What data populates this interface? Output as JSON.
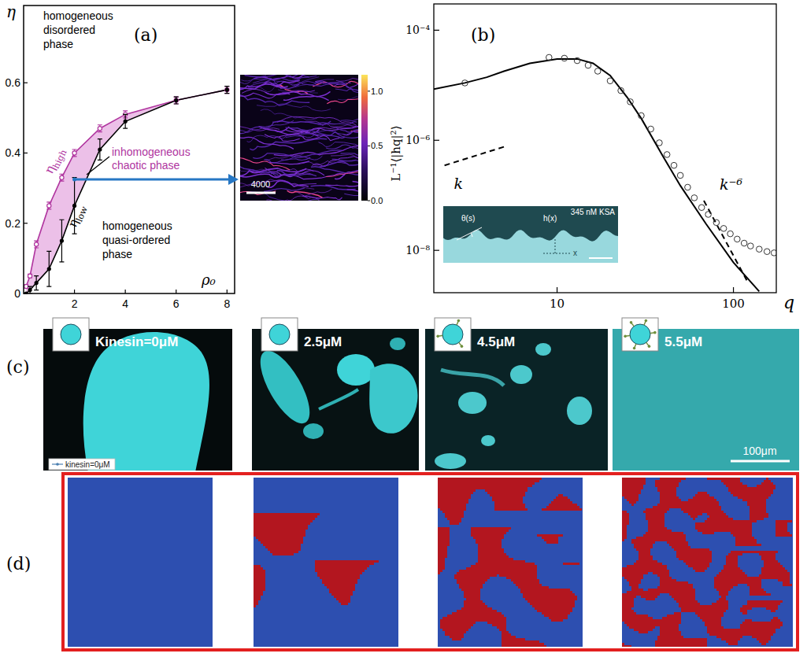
{
  "chart_data": [
    {
      "type": "line",
      "x_label": "ρ₀",
      "y_label": "η",
      "annotations": [
        "homogeneous disordered phase",
        "inhomogeneous chaotic phase",
        "homogeneous quasi-ordered phase"
      ],
      "xlim": [
        0,
        8.3
      ],
      "ylim": [
        0,
        0.82
      ],
      "xticks": [
        2,
        4,
        6,
        8
      ],
      "yticks": [
        0,
        0.2,
        0.4,
        0.6
      ],
      "x": [
        0.1,
        0.25,
        0.5,
        1,
        1.5,
        2,
        3,
        4,
        6,
        8
      ],
      "series": [
        {
          "name": "ηhigh",
          "color": "#b0359f",
          "marker": "circle",
          "values": [
            0.02,
            0.05,
            0.14,
            0.25,
            0.33,
            0.4,
            0.47,
            0.51,
            0.55,
            0.58
          ],
          "errors": [
            0.005,
            0.005,
            0.01,
            0.01,
            0.01,
            0.01,
            0.01,
            0.01,
            0.01,
            0.01
          ]
        },
        {
          "name": "ηlow",
          "color": "#000000",
          "marker": "dot",
          "values": [
            0,
            0.01,
            0.03,
            0.07,
            0.15,
            0.25,
            0.41,
            0.49,
            0.55,
            0.58
          ],
          "errors": [
            0,
            0.01,
            0.02,
            0.05,
            0.06,
            0.08,
            0.03,
            0.02,
            0.01,
            0.01
          ]
        }
      ]
    },
    {
      "type": "line",
      "log": true,
      "x_label": "q",
      "y_label": "L⁻¹⟨|hq|²⟩",
      "xlim": [
        2,
        175
      ],
      "ylim": [
        1.7e-09,
        0.0003
      ],
      "xticks": [
        10,
        100
      ],
      "yticks": [
        {
          "value": 0.0001,
          "label": "10⁻⁴"
        },
        {
          "value": 1e-06,
          "label": "10⁻⁶"
        },
        {
          "value": 1e-08,
          "label": "10⁻⁸"
        }
      ],
      "series": [
        {
          "name": "k",
          "type": "line",
          "line_style": "dashed",
          "color": "#000000",
          "x": [
            2.3,
            5
          ],
          "values": [
            3.5e-07,
            7.6e-07
          ]
        },
        {
          "name": "k⁻⁶",
          "type": "line",
          "line_style": "dashed",
          "color": "#000000",
          "x": [
            68,
            120
          ],
          "values": [
            8e-08,
            2.7e-09
          ]
        },
        {
          "type": "line",
          "line_style": "solid",
          "color": "#000000",
          "x": [
            2,
            3,
            4,
            5,
            7,
            10,
            13,
            16,
            20,
            25,
            30,
            40,
            50,
            70,
            100,
            140
          ],
          "values": [
            8.5e-06,
            1.1e-05,
            1.4e-05,
            1.8e-05,
            2.5e-05,
            3e-05,
            3e-05,
            2.5e-05,
            1.5e-05,
            6e-06,
            2.5e-06,
            5e-07,
            1.5e-07,
            3e-08,
            6e-09,
            1.8e-09
          ]
        },
        {
          "type": "scatter",
          "marker": "open-circle",
          "color": "#333333",
          "x": [
            3,
            9,
            11,
            13,
            15,
            17,
            20,
            23,
            26,
            30,
            34,
            38,
            42,
            46,
            50,
            55,
            60,
            66,
            72,
            80,
            88,
            96,
            105,
            115,
            125,
            140,
            155,
            170
          ],
          "values": [
            1.1e-05,
            3.2e-05,
            3.1e-05,
            2.8e-05,
            2.3e-05,
            1.8e-05,
            1.2e-05,
            8e-06,
            5e-06,
            2.8e-06,
            1.6e-06,
            9e-07,
            5.5e-07,
            3.5e-07,
            2.3e-07,
            1.4e-07,
            9e-08,
            6e-08,
            4.5e-08,
            3.2e-08,
            2.5e-08,
            2e-08,
            1.6e-08,
            1.35e-08,
            1.2e-08,
            1.05e-08,
            9.5e-09,
            9e-09
          ]
        }
      ]
    }
  ],
  "figure": {
    "panel_labels": [
      "(a)",
      "(b)",
      "(c)",
      "(d)"
    ],
    "snapshot_a": {
      "scale_bar": "4000",
      "colorbar": {
        "range": [
          0,
          1.15
        ],
        "ticks": [
          {
            "value": 0,
            "label": "0.0"
          },
          {
            "value": 0.5,
            "label": "0.5"
          },
          {
            "value": 1,
            "label": "1.0"
          }
        ]
      }
    },
    "inset_b": {
      "angle": "θ(s)",
      "height": "h(x)",
      "axis": "x",
      "condition": "345 nM KSA"
    },
    "panel_c": {
      "labels": [
        "Kinesin=0μM",
        "2.5μM",
        "4.5μM",
        "5.5μM"
      ],
      "legend": "kinesin=0μM",
      "scale_bar": "100μm"
    }
  }
}
